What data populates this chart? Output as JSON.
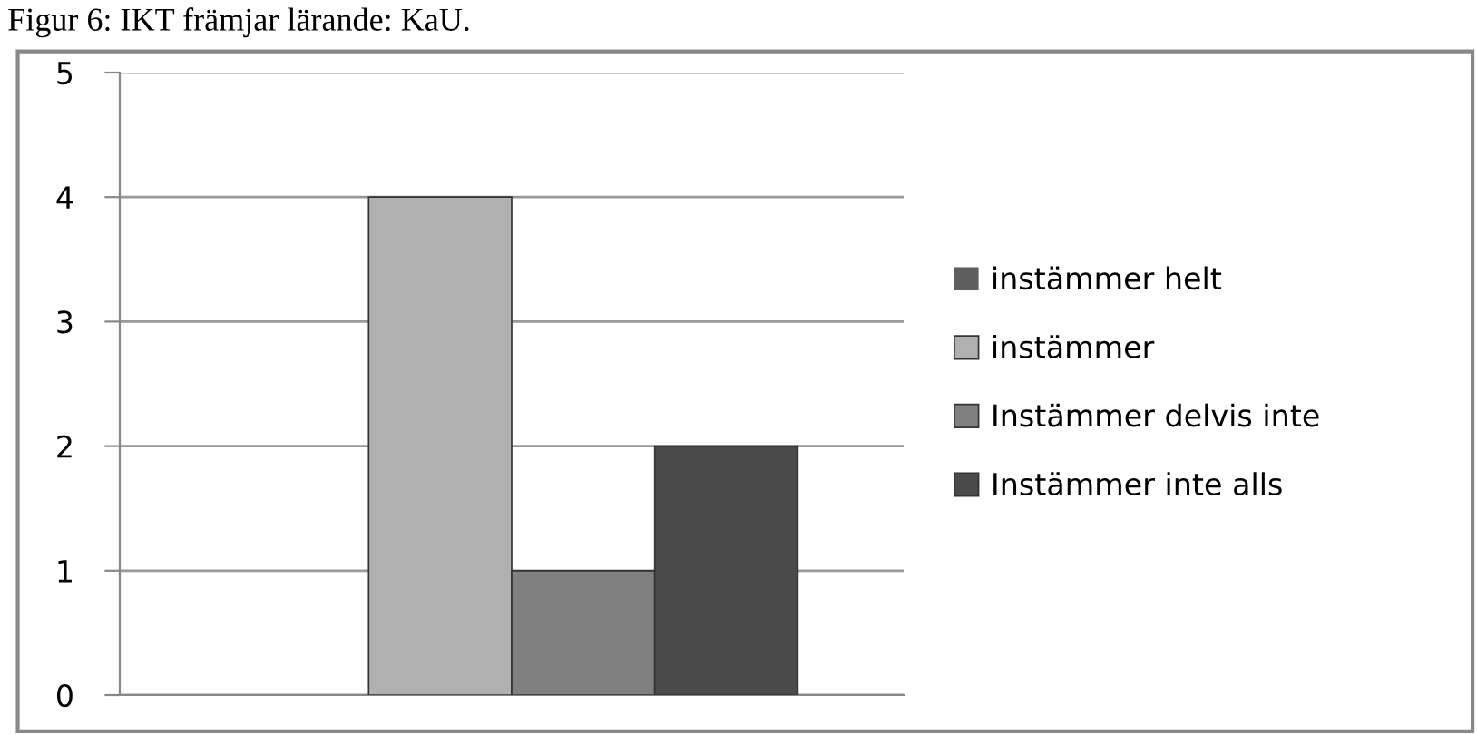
{
  "chart_data": {
    "type": "bar",
    "title": "Figur 6: IKT främjar lärande: KaU.",
    "categories": [
      null
    ],
    "series": [
      {
        "name": "instämmer helt",
        "color": "#5e5e5e",
        "values": [
          0
        ]
      },
      {
        "name": "instämmer",
        "color": "#b0b0b0",
        "values": [
          4
        ]
      },
      {
        "name": "Instämmer delvis inte",
        "color": "#808080",
        "values": [
          1
        ]
      },
      {
        "name": "Instämmer inte alls",
        "color": "#4a4a4a",
        "values": [
          2
        ]
      }
    ],
    "ylim": [
      0,
      5
    ],
    "yticks": [
      0,
      1,
      2,
      3,
      4,
      5
    ],
    "grid": "y",
    "legend": "right"
  }
}
